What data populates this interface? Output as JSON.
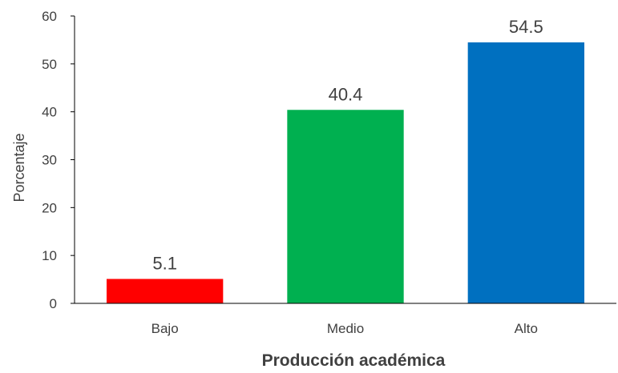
{
  "chart_data": {
    "type": "bar",
    "categories": [
      "Bajo",
      "Medio",
      "Alto"
    ],
    "values": [
      5.1,
      40.4,
      54.5
    ],
    "data_labels": [
      "5.1",
      "40.4",
      "54.5"
    ],
    "colors": [
      "#ff0000",
      "#00b050",
      "#0070c0"
    ],
    "title": "",
    "xlabel": "Producción académica",
    "ylabel": "Porcentaje",
    "ylim": [
      0,
      60
    ],
    "yticks": [
      0,
      10,
      20,
      30,
      40,
      50,
      60
    ],
    "ytick_labels": [
      "0",
      "10",
      "20",
      "30",
      "40",
      "50",
      "60"
    ],
    "grid": false,
    "legend": "none"
  }
}
